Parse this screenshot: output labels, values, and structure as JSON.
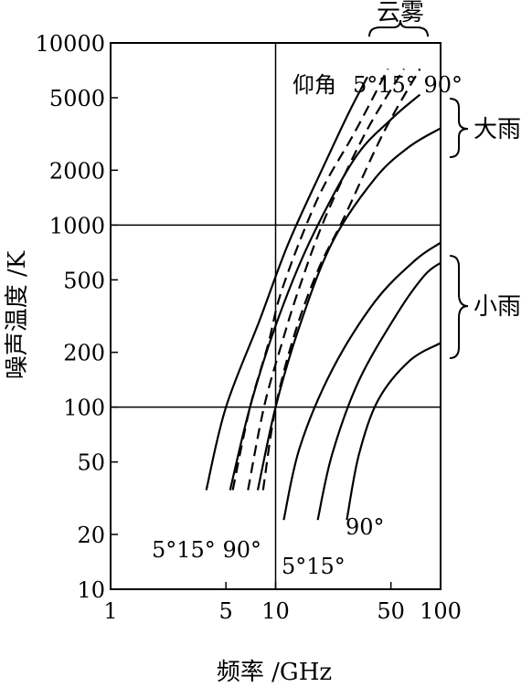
{
  "chart_data": {
    "type": "line",
    "xlabel": "频率 /GHz",
    "ylabel": "噪声温度 /K",
    "x_ticks": [
      1,
      5,
      10,
      50,
      100
    ],
    "x_tick_labels": [
      "1",
      "5",
      "10",
      "50",
      "100"
    ],
    "y_ticks": [
      10,
      20,
      50,
      100,
      200,
      500,
      1000,
      2000,
      5000,
      10000
    ],
    "y_tick_labels": [
      "10",
      "20",
      "50",
      "100",
      "200",
      "500",
      "1000",
      "2000",
      "5000",
      "10000"
    ],
    "xlim": [
      1,
      100
    ],
    "ylim": [
      10,
      10000
    ],
    "grid_x": [
      10
    ],
    "grid_y": [
      100,
      1000
    ],
    "series": [
      {
        "group": "heavy_rain",
        "style": "solid",
        "points": [
          [
            3.8,
            35
          ],
          [
            5,
            100
          ],
          [
            8,
            300
          ],
          [
            12,
            800
          ],
          [
            20,
            2200
          ],
          [
            28,
            4200
          ],
          [
            36,
            6500
          ]
        ]
      },
      {
        "group": "heavy_rain",
        "style": "solid",
        "points": [
          [
            5.3,
            35
          ],
          [
            7,
            100
          ],
          [
            10,
            280
          ],
          [
            16,
            800
          ],
          [
            30,
            2300
          ],
          [
            50,
            3800
          ],
          [
            75,
            5200
          ]
        ]
      },
      {
        "group": "heavy_rain",
        "style": "solid",
        "points": [
          [
            7.8,
            35
          ],
          [
            10,
            100
          ],
          [
            14,
            280
          ],
          [
            22,
            800
          ],
          [
            40,
            1800
          ],
          [
            65,
            2700
          ],
          [
            100,
            3400
          ]
        ]
      },
      {
        "group": "light_rain",
        "style": "solid",
        "points": [
          [
            11.2,
            24
          ],
          [
            14,
            60
          ],
          [
            22,
            160
          ],
          [
            40,
            380
          ],
          [
            70,
            640
          ],
          [
            100,
            800
          ]
        ]
      },
      {
        "group": "light_rain",
        "style": "solid",
        "points": [
          [
            18,
            24
          ],
          [
            22,
            55
          ],
          [
            32,
            140
          ],
          [
            55,
            330
          ],
          [
            80,
            530
          ],
          [
            100,
            620
          ]
        ]
      },
      {
        "group": "light_rain",
        "style": "solid",
        "points": [
          [
            27,
            24
          ],
          [
            32,
            55
          ],
          [
            42,
            110
          ],
          [
            65,
            180
          ],
          [
            100,
            225
          ]
        ]
      },
      {
        "group": "fog",
        "style": "dashed",
        "points": [
          [
            5.5,
            35
          ],
          [
            7,
            100
          ],
          [
            9,
            220
          ],
          [
            11,
            450
          ],
          [
            18,
            1400
          ],
          [
            30,
            3200
          ],
          [
            44,
            6200
          ],
          [
            48,
            7200
          ]
        ]
      },
      {
        "group": "fog",
        "style": "dashed",
        "points": [
          [
            6.8,
            35
          ],
          [
            8.5,
            100
          ],
          [
            11,
            230
          ],
          [
            14,
            460
          ],
          [
            20,
            1100
          ],
          [
            35,
            3200
          ],
          [
            60,
            7200
          ]
        ]
      },
      {
        "group": "fog",
        "style": "dashed",
        "points": [
          [
            8.4,
            35
          ],
          [
            10,
            100
          ],
          [
            13,
            250
          ],
          [
            18,
            560
          ],
          [
            26,
            1100
          ],
          [
            45,
            3200
          ],
          [
            75,
            7200
          ]
        ]
      }
    ],
    "annotations": {
      "fog_label": "云雾",
      "elevation_label": "仰角",
      "fog_angles": "5°15° 90°",
      "heavy_rain_label": "大雨",
      "light_rain_label": "小雨",
      "heavy_rain_angles": "5°15° 90°",
      "light_rain_angles_top": "90°",
      "light_rain_angles_bottom": "5°15°"
    }
  }
}
